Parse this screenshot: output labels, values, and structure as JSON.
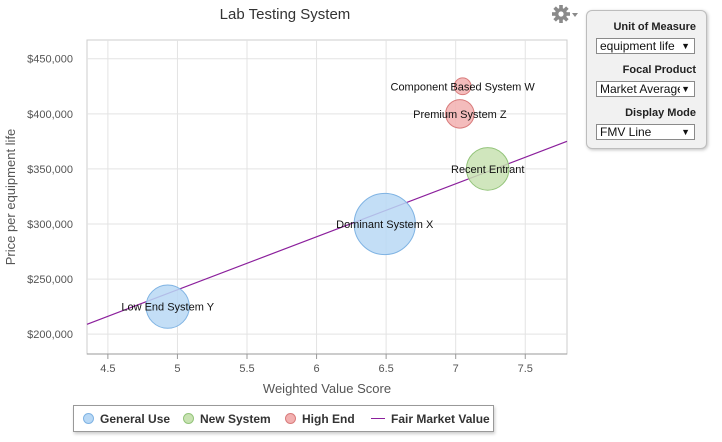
{
  "chart_data": {
    "type": "scatter",
    "title": "Lab Testing System",
    "xlabel": "Weighted Value Score",
    "ylabel": "Price per equipment life",
    "xlim": [
      4.35,
      7.8
    ],
    "ylim": [
      182000,
      467000
    ],
    "x_ticks": [
      4.5,
      5,
      5.5,
      6,
      6.5,
      7,
      7.5
    ],
    "x_tick_labels": [
      "4.5",
      "5",
      "5.5",
      "6",
      "6.5",
      "7",
      "7.5"
    ],
    "y_ticks": [
      200000,
      250000,
      300000,
      350000,
      400000,
      450000
    ],
    "y_tick_labels": [
      "$200,000",
      "$250,000",
      "$300,000",
      "$350,000",
      "$400,000",
      "$450,000"
    ],
    "grid": true,
    "legend_position": "bottom",
    "series": [
      {
        "name": "General Use",
        "color": "#b8d8f5",
        "stroke": "#7fb3e3"
      },
      {
        "name": "New System",
        "color": "#c8e2b2",
        "stroke": "#93c47a"
      },
      {
        "name": "High End",
        "color": "#f2b0b0",
        "stroke": "#d97c7c"
      },
      {
        "name": "Fair Market Value",
        "color": "#8b1f9c"
      }
    ],
    "points": [
      {
        "label": "Low End System Y",
        "series": "General Use",
        "x": 4.93,
        "y": 225000,
        "size": 3
      },
      {
        "label": "Dominant System X",
        "series": "General Use",
        "x": 6.49,
        "y": 300000,
        "size": 6
      },
      {
        "label": "Recent Entrant",
        "series": "New System",
        "x": 7.23,
        "y": 350000,
        "size": 2.9
      },
      {
        "label": "Premium System Z",
        "series": "High End",
        "x": 7.03,
        "y": 400000,
        "size": 1.3
      },
      {
        "label": "Component Based System W",
        "series": "High End",
        "x": 7.05,
        "y": 425000,
        "size": 0.45
      }
    ],
    "fair_market_line": {
      "x": [
        4.35,
        7.8
      ],
      "y": [
        209000,
        375000
      ]
    }
  },
  "controls": {
    "unit_label": "Unit of Measure",
    "unit_value": "equipment life",
    "focal_label": "Focal Product",
    "focal_value": "Market Average",
    "display_label": "Display Mode",
    "display_value": "FMV Line"
  },
  "icons": {
    "settings": "gear-icon",
    "dropdown": "chevron-down-icon"
  }
}
